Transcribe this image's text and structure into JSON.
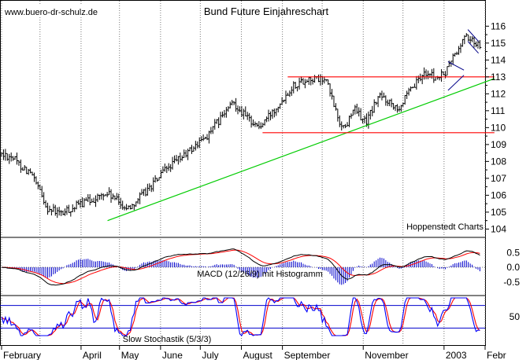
{
  "chart_data": [
    {
      "type": "ohlc",
      "title": "Bund Future Einjahreschart",
      "watermark": "www.buero-dr-schulz.de",
      "source": "Hoppenstedt Charts",
      "y_ticks": [
        104,
        105,
        106,
        107,
        108,
        109,
        110,
        111,
        112,
        113,
        114,
        115,
        116
      ],
      "ylim": [
        104,
        116.6
      ],
      "x_labels": [
        "February",
        "April",
        "May",
        "June",
        "July",
        "August",
        "September",
        "November",
        "2003",
        "Febr"
      ],
      "x_label_days": [
        0,
        60,
        89,
        120,
        150,
        181,
        212,
        273,
        334,
        365
      ],
      "series": [
        {
          "type": "price_path",
          "x": [
            0,
            8,
            12,
            22,
            35,
            45,
            60,
            80,
            95,
            110,
            125,
            140,
            155,
            165,
            175,
            185,
            195,
            210,
            220,
            232,
            245,
            255,
            260,
            265,
            275,
            285,
            300,
            310,
            320,
            328,
            335,
            340,
            345,
            350,
            355,
            362
          ],
          "y": [
            108.4,
            108.3,
            107.9,
            107.3,
            105.2,
            104.9,
            105.5,
            106.1,
            105.2,
            106.3,
            107.6,
            108.5,
            109.5,
            110.5,
            111.5,
            110.6,
            110.0,
            111.5,
            112.5,
            112.9,
            112.8,
            110.3,
            110.0,
            111.2,
            110.3,
            111.9,
            111.2,
            112.3,
            113.3,
            112.9,
            113.2,
            114.1,
            114.6,
            115.5,
            115.1,
            114.9
          ]
        },
        {
          "type": "trendline",
          "color": "#00cc00",
          "x": [
            80,
            372
          ],
          "y": [
            104.5,
            112.9
          ]
        },
        {
          "type": "channel",
          "color": "#ff0000",
          "x": [
            216,
            372
          ],
          "y": [
            113.0,
            113.0
          ]
        },
        {
          "type": "channel",
          "color": "#ff0000",
          "x": [
            197,
            372
          ],
          "y": [
            109.7,
            109.7
          ]
        }
      ]
    },
    {
      "type": "macd",
      "label": "MACD (12/26/9) mit Histogramm",
      "y_ticks": [
        0.5,
        0.0,
        -0.5
      ],
      "ylim": [
        -0.7,
        0.72
      ]
    },
    {
      "type": "stochastic",
      "label": "Slow Stochastik (5/3/3)",
      "y_ticks": [
        50
      ],
      "ylim": [
        0,
        100
      ],
      "bands": [
        80,
        20
      ]
    }
  ]
}
